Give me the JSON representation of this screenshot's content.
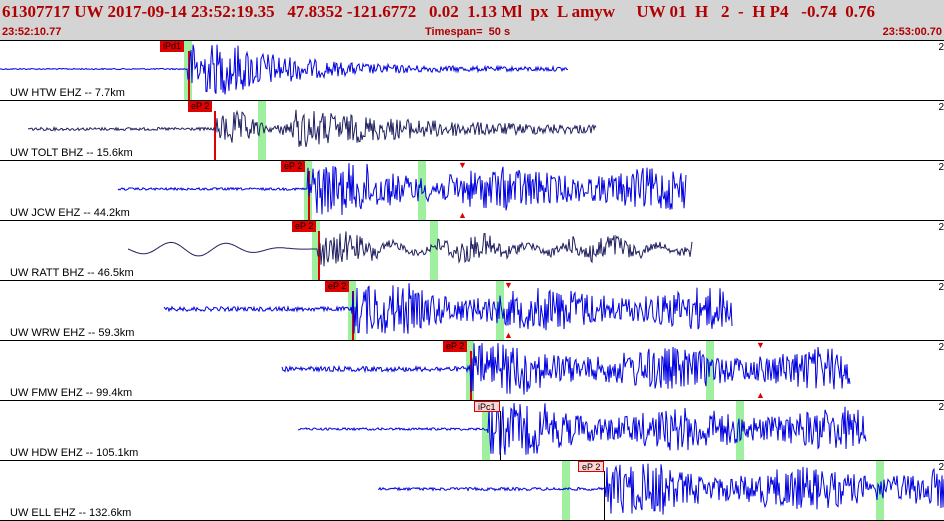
{
  "header": {
    "title": "61307717 UW 2017-09-14 23:52:19.35   47.8352 -121.6772   0.02  1.13 Ml  px  L amyw     UW 01  H   2  -  H P4   -0.74  0.76",
    "time_start": "23:52:10.77",
    "timespan": "Timespan=  50 s",
    "time_end": "23:53:00.70"
  },
  "traces": [
    {
      "label": "UW HTW EHZ -- 7.7km",
      "pick": "iPd1",
      "pick_style": "red",
      "color": "#0000e0",
      "corner": "2"
    },
    {
      "label": "UW TOLT BHZ -- 15.6km",
      "pick": "eP 2",
      "pick_style": "red",
      "color": "#202060",
      "corner": "2"
    },
    {
      "label": "UW JCW EHZ -- 44.2km",
      "pick": "eP 2",
      "pick_style": "red",
      "color": "#0000e0",
      "corner": "2"
    },
    {
      "label": "UW RATT BHZ -- 46.5km",
      "pick": "eP 2",
      "pick_style": "red",
      "color": "#202060",
      "corner": "2"
    },
    {
      "label": "UW WRW EHZ -- 59.3km",
      "pick": "eP 2",
      "pick_style": "red",
      "color": "#0000e0",
      "corner": "2"
    },
    {
      "label": "UW FMW EHZ -- 99.4km",
      "pick": "eP 2",
      "pick_style": "red",
      "color": "#0000e0",
      "corner": "2"
    },
    {
      "label": "UW HDW EHZ -- 105.1km",
      "pick": "iPc1",
      "pick_style": "pink",
      "color": "#0000e0",
      "corner": "2"
    },
    {
      "label": "UW ELL EHZ -- 132.6km",
      "pick": "eP 2",
      "pick_style": "pink",
      "color": "#0000e0",
      "corner": "2"
    }
  ]
}
